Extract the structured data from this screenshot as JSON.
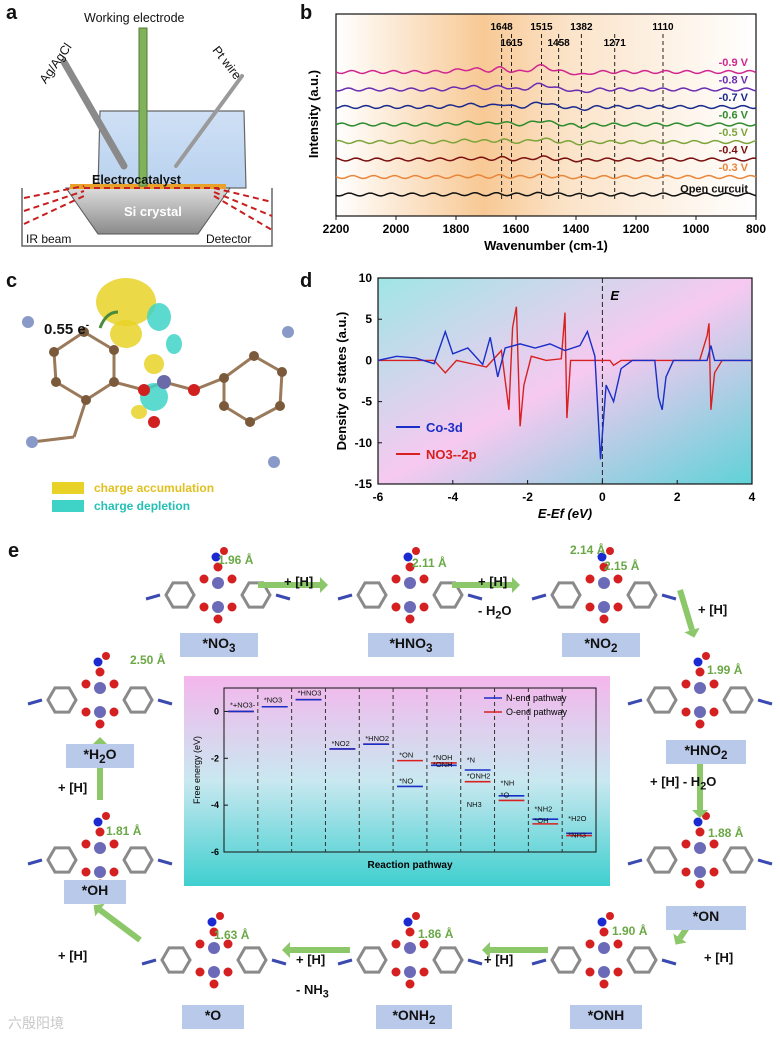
{
  "panel_a": {
    "letter": "a",
    "labels": {
      "working_electrode": "Working electrode",
      "reference": "Ag/AgCl",
      "counter": "Pt wire",
      "electrocatalyst": "Electrocatalyst",
      "crystal": "Si crystal",
      "ir_beam": "IR beam",
      "detector": "Detector"
    }
  },
  "panel_b": {
    "letter": "b",
    "chart_data": {
      "type": "line",
      "xlabel": "Wavenumber (cm-1)",
      "ylabel": "Intensity (a.u.)",
      "xlim": [
        2200,
        800
      ],
      "x_ticks": [
        2200,
        2000,
        1800,
        1600,
        1400,
        1200,
        1000,
        800
      ],
      "peak_markers": [
        1648,
        1615,
        1515,
        1458,
        1382,
        1271,
        1110
      ],
      "series": [
        {
          "name": "-0.9 V",
          "color": "#d02690"
        },
        {
          "name": "-0.8 V",
          "color": "#6b2db0"
        },
        {
          "name": "-0.7 V",
          "color": "#1a2a8c"
        },
        {
          "name": "-0.6 V",
          "color": "#2e8b2e"
        },
        {
          "name": "-0.5 V",
          "color": "#7ca43a"
        },
        {
          "name": "-0.4 V",
          "color": "#7a1010"
        },
        {
          "name": "-0.3 V",
          "color": "#e8863a"
        },
        {
          "name": "Open curcuit",
          "color": "#111111"
        }
      ]
    }
  },
  "panel_c": {
    "letter": "c",
    "charge": "0.55 e",
    "charge_sup": "-",
    "legend": {
      "accumulation": "charge accumulation",
      "depletion": "charge depletion"
    },
    "colors": {
      "accumulation": "#e8d227",
      "depletion": "#3fd3c8"
    }
  },
  "panel_d": {
    "letter": "d",
    "chart_data": {
      "type": "line",
      "xlabel": "E-Ef (eV)",
      "ylabel": "Density of states (a.u.)",
      "xlim": [
        -6,
        4
      ],
      "ylim": [
        -15,
        10
      ],
      "x_ticks": [
        -6,
        -4,
        -2,
        0,
        2,
        4
      ],
      "y_ticks": [
        10,
        5,
        0,
        -5,
        -10,
        -15
      ],
      "fermi_label": "E",
      "fermi_sub": "f",
      "series": [
        {
          "name": "Co-3d",
          "color": "#1a2ec8"
        },
        {
          "name": "NO3--2p",
          "color": "#d92020"
        }
      ]
    }
  },
  "panel_e": {
    "letter": "e",
    "intermediates": [
      {
        "label": "*NO",
        "sub": "3",
        "dist": "1.96 Å"
      },
      {
        "label": "*HNO",
        "sub": "3",
        "dist": "2.11 Å"
      },
      {
        "label": "*NO",
        "sub": "2",
        "dist": "2.14 Å",
        "dist2": "2.15 Å"
      },
      {
        "label": "*HNO",
        "sub": "2",
        "dist": "1.99 Å"
      },
      {
        "label": "*ON",
        "sub": "",
        "dist": "1.88 Å"
      },
      {
        "label": "*ONH",
        "sub": "",
        "dist": "1.90 Å"
      },
      {
        "label": "*ONH",
        "sub": "2",
        "dist": "1.86 Å"
      },
      {
        "label": "*O",
        "sub": "",
        "dist": "1.63 Å"
      },
      {
        "label": "*OH",
        "sub": "",
        "dist": "1.81 Å"
      },
      {
        "label": "*H",
        "sub": "2",
        "tail": "O",
        "dist": "2.50 Å"
      }
    ],
    "steps": {
      "h": "+ [H]",
      "h2o": "- H",
      "h2o_sub": "2",
      "h2o_tail": "O",
      "nh3": "- NH",
      "nh3_sub": "3",
      "h_minus_h2o": "+ [H] - H"
    },
    "inset": {
      "chart_data": {
        "type": "line",
        "xlabel": "Reaction pathway",
        "ylabel": "Free energy (eV)",
        "ylim": [
          -6,
          1
        ],
        "y_ticks": [
          0,
          -2,
          -4,
          -6
        ],
        "series": [
          {
            "name": "N-end pathway",
            "color": "#1a2ec8"
          },
          {
            "name": "O-end pathway",
            "color": "#d92020"
          }
        ],
        "state_labels": [
          "*+NO3-",
          "*NO3",
          "*HNO3",
          "*NO2",
          "*HNO2",
          "*ON",
          "*NO",
          "*NOH",
          "*ONH",
          "*ONH2",
          "*N",
          "*NH",
          "*O",
          "NH3",
          "*NH2",
          "*OH",
          "*H2O",
          "*NH3"
        ]
      }
    }
  },
  "watermark": "六殷阳境"
}
